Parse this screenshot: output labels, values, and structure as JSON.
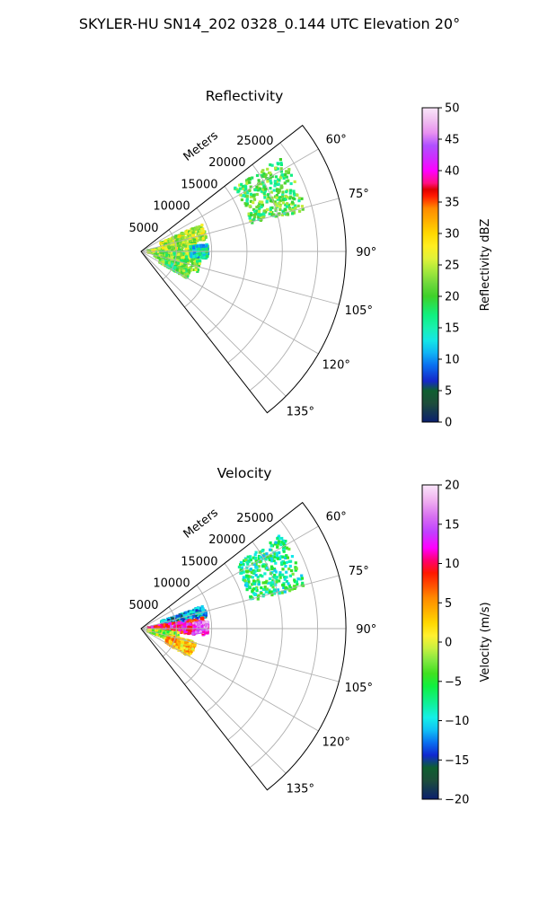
{
  "figure": {
    "title": "SKYLER-HU  SN14_202  0328_0.144 UTC Elevation 20°"
  },
  "chart_data": [
    {
      "type": "polar-sector",
      "title": "Reflectivity",
      "radial_label": "Meters",
      "range_ticks": [
        5000,
        10000,
        15000,
        20000,
        25000
      ],
      "range_tick_labels": [
        "5000",
        "10000",
        "15000",
        "20000",
        "25000"
      ],
      "azimuth_ticks": [
        60,
        75,
        90,
        105,
        120,
        135
      ],
      "azimuth_tick_labels": [
        "60°",
        "75°",
        "90°",
        "105°",
        "120°",
        "135°"
      ],
      "azimuth_range": [
        52,
        142
      ],
      "range_max": 29000,
      "grid": true,
      "colorbar": {
        "label": "Reflectivity dBZ",
        "range": [
          0,
          50
        ],
        "ticks": [
          0,
          5,
          10,
          15,
          20,
          25,
          30,
          35,
          40,
          45,
          50
        ],
        "tick_labels": [
          "0",
          "5",
          "10",
          "15",
          "20",
          "25",
          "30",
          "35",
          "40",
          "45",
          "50"
        ]
      },
      "echo_regions": [
        {
          "az": [
            56,
            76
          ],
          "r": [
            16000,
            24000
          ],
          "value": 20
        },
        {
          "az": [
            66,
            80
          ],
          "r": [
            3000,
            9500
          ],
          "value": 25
        },
        {
          "az": [
            80,
            100
          ],
          "r": [
            1000,
            8000
          ],
          "value": 24
        },
        {
          "az": [
            90,
            112
          ],
          "r": [
            2000,
            8500
          ],
          "value": 22
        },
        {
          "az": [
            112,
            120
          ],
          "r": [
            3000,
            7500
          ],
          "value": 20
        },
        {
          "az": [
            84,
            96
          ],
          "r": [
            7000,
            9500
          ],
          "value": 14
        }
      ]
    },
    {
      "type": "polar-sector",
      "title": "Velocity",
      "radial_label": "Meters",
      "range_ticks": [
        5000,
        10000,
        15000,
        20000,
        25000
      ],
      "range_tick_labels": [
        "5000",
        "10000",
        "15000",
        "20000",
        "25000"
      ],
      "azimuth_ticks": [
        60,
        75,
        90,
        105,
        120,
        135
      ],
      "azimuth_tick_labels": [
        "60°",
        "75°",
        "90°",
        "105°",
        "120°",
        "135°"
      ],
      "azimuth_range": [
        52,
        142
      ],
      "range_max": 29000,
      "grid": true,
      "colorbar": {
        "label": "Velocity (m/s)",
        "range": [
          -20,
          20
        ],
        "ticks": [
          -20,
          -15,
          -10,
          -5,
          0,
          5,
          10,
          15,
          20
        ],
        "tick_labels": [
          "−20",
          "−15",
          "−10",
          "−5",
          "0",
          "5",
          "10",
          "15",
          "20"
        ]
      },
      "echo_regions": [
        {
          "az": [
            56,
            76
          ],
          "r": [
            16000,
            24000
          ],
          "value": -7
        },
        {
          "az": [
            70,
            80
          ],
          "r": [
            3000,
            9500
          ],
          "value": -12
        },
        {
          "az": [
            80,
            96
          ],
          "r": [
            1000,
            9000
          ],
          "value": 11
        },
        {
          "az": [
            96,
            112
          ],
          "r": [
            1000,
            5500
          ],
          "value": -2
        },
        {
          "az": [
            104,
            120
          ],
          "r": [
            4000,
            8000
          ],
          "value": 3
        },
        {
          "az": [
            84,
            94
          ],
          "r": [
            7500,
            9500
          ],
          "value": 15
        }
      ]
    }
  ]
}
